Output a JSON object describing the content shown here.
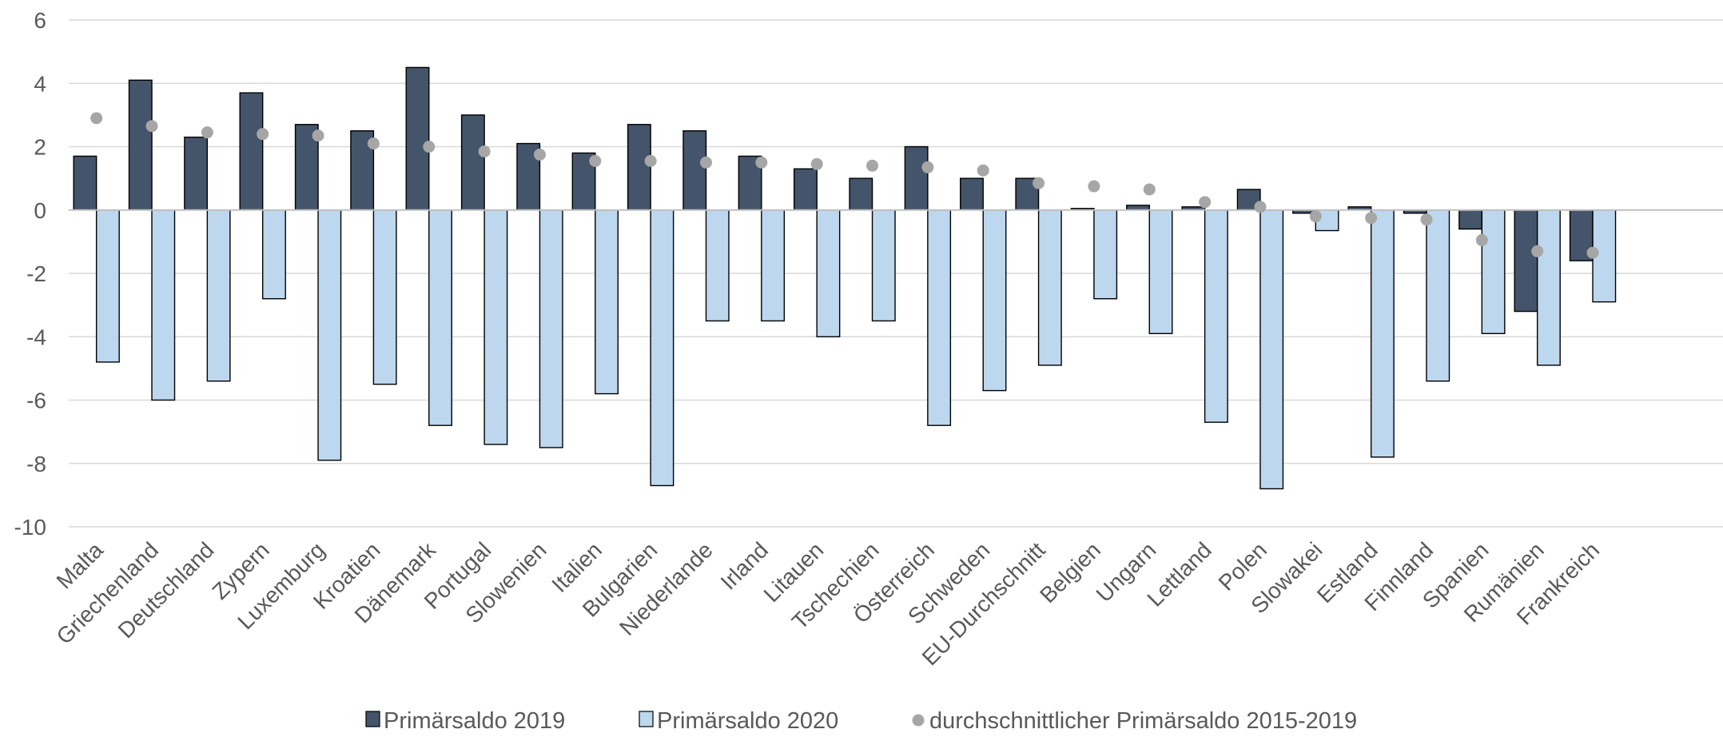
{
  "chart_data": {
    "type": "bar",
    "title": "",
    "xlabel": "",
    "ylabel": "",
    "ylim": [
      -10,
      6
    ],
    "yticks": [
      6,
      4,
      2,
      0,
      -2,
      -4,
      -6,
      -8,
      -10
    ],
    "grid": true,
    "legend_position": "bottom",
    "categories": [
      "Malta",
      "Griechenland",
      "Deutschland",
      "Zypern",
      "Luxemburg",
      "Kroatien",
      "Dänemark",
      "Portugal",
      "Slowenien",
      "Italien",
      "Bulgarien",
      "Niederlande",
      "Irland",
      "Litauen",
      "Tschechien",
      "Österreich",
      "Schweden",
      "EU-Durchschnitt",
      "Belgien",
      "Ungarn",
      "Lettland",
      "Polen",
      "Slowakei",
      "Estland",
      "Finnland",
      "Spanien",
      "Rumänien",
      "Frankreich"
    ],
    "series": [
      {
        "name": "Primärsaldo 2019",
        "kind": "bar",
        "color": "#44546a",
        "values": [
          1.7,
          4.1,
          2.3,
          3.7,
          2.7,
          2.5,
          4.5,
          3.0,
          2.1,
          1.8,
          2.7,
          2.5,
          1.7,
          1.3,
          1.0,
          2.0,
          1.0,
          1.0,
          0.05,
          0.15,
          0.1,
          0.65,
          -0.1,
          0.1,
          -0.1,
          -0.6,
          -3.2,
          -1.6
        ]
      },
      {
        "name": "Primärsaldo 2020",
        "kind": "bar",
        "color": "#bdd7ee",
        "values": [
          -4.8,
          -6.0,
          -5.4,
          -2.8,
          -7.9,
          -5.5,
          -6.8,
          -7.4,
          -7.5,
          -5.8,
          -8.7,
          -3.5,
          -3.5,
          -4.0,
          -3.5,
          -6.8,
          -5.7,
          -4.9,
          -2.8,
          -3.9,
          -6.7,
          -8.8,
          -0.65,
          -7.8,
          -5.4,
          -3.9,
          -4.9,
          -2.9
        ]
      },
      {
        "name": "durchschnittlicher Primärsaldo 2015-2019",
        "kind": "dot",
        "color": "#a6a6a6",
        "values": [
          2.9,
          2.65,
          2.45,
          2.4,
          2.35,
          2.1,
          2.0,
          1.85,
          1.75,
          1.55,
          1.55,
          1.5,
          1.5,
          1.45,
          1.4,
          1.35,
          1.25,
          0.85,
          0.75,
          0.65,
          0.25,
          0.1,
          -0.2,
          -0.25,
          -0.3,
          -0.95,
          -1.3,
          -1.35
        ]
      }
    ]
  }
}
